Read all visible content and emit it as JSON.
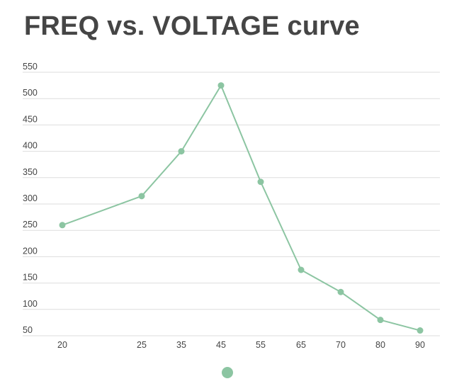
{
  "chart_data": {
    "type": "line",
    "title": "FREQ vs. VOLTAGE curve",
    "xlabel": "",
    "ylabel": "",
    "categories": [
      "20",
      "25",
      "35",
      "45",
      "55",
      "65",
      "70",
      "80",
      "90"
    ],
    "series": [
      {
        "values": [
          260,
          315,
          400,
          525,
          342,
          175,
          133,
          80,
          60
        ]
      }
    ],
    "ylim": [
      50,
      550
    ],
    "yticks": [
      550,
      500,
      450,
      400,
      350,
      300,
      250,
      200,
      150,
      100,
      50
    ],
    "grid": true,
    "line_color": "#8cc5a2",
    "grid_color": "#dddddd",
    "legend": "bottom"
  }
}
